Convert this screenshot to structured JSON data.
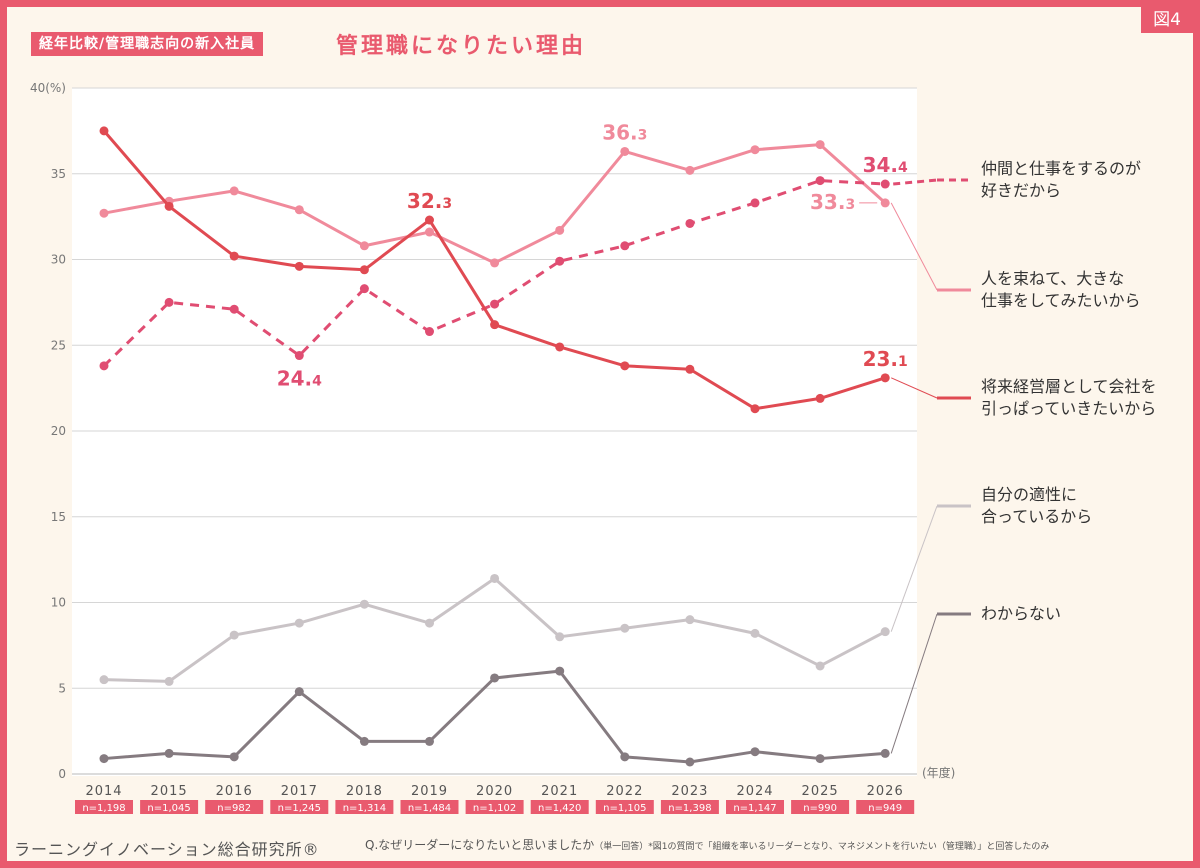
{
  "figure_badge": "図4",
  "header": {
    "tag": "経年比較/管理職志向の新入社員",
    "title": "管理職になりたい理由"
  },
  "footer": {
    "publisher": "ラーニングイノベーション総合研究所®",
    "question": "Q.なぜリーダーになりたいと思いましたか",
    "question_note": "（単一回答）",
    "footnote": "*図1の質問で「組織を率いるリーダーとなり、マネジメントを行いたい（管理職）」と回答したのみ"
  },
  "colors": {
    "border": "#e95a6e",
    "background": "#fdf6ec"
  },
  "chart_data": {
    "type": "line",
    "x": [
      "2014",
      "2015",
      "2016",
      "2017",
      "2018",
      "2019",
      "2020",
      "2021",
      "2022",
      "2023",
      "2024",
      "2025",
      "2026"
    ],
    "x_unit_label": "(年度)",
    "y_unit_label": "(%)",
    "ylim": [
      0,
      40
    ],
    "yticks": [
      0,
      5,
      10,
      15,
      20,
      25,
      30,
      35,
      40
    ],
    "ytick_labels": [
      "0",
      "5",
      "10",
      "15",
      "20",
      "25",
      "30",
      "35",
      "40"
    ],
    "grid": true,
    "sample_sizes": [
      "n=1,198",
      "n=1,045",
      "n=982",
      "n=1,245",
      "n=1,314",
      "n=1,484",
      "n=1,102",
      "n=1,420",
      "n=1,105",
      "n=1,398",
      "n=1,147",
      "n=990",
      "n=949"
    ],
    "series": [
      {
        "name": "仲間と仕事をするのが好きだから",
        "legend_lines": [
          "仲間と仕事をするのが",
          "好きだから"
        ],
        "color": "#e04d72",
        "style": "dashed",
        "values": [
          23.8,
          27.5,
          27.1,
          24.4,
          28.3,
          25.8,
          27.4,
          29.9,
          30.8,
          32.1,
          33.3,
          34.6,
          34.4
        ]
      },
      {
        "name": "人を束ねて、大きな仕事をしてみたいから",
        "legend_lines": [
          "人を束ねて、大きな",
          "仕事をしてみたいから"
        ],
        "color": "#f08a9b",
        "style": "solid",
        "values": [
          32.7,
          33.4,
          34.0,
          32.9,
          30.8,
          31.6,
          29.8,
          31.7,
          36.3,
          35.2,
          36.4,
          36.7,
          33.3
        ]
      },
      {
        "name": "将来経営層として会社を引っぱっていきたいから",
        "legend_lines": [
          "将来経営層として会社を",
          "引っぱっていきたいから"
        ],
        "color": "#e04a52",
        "style": "solid",
        "values": [
          37.5,
          33.1,
          30.2,
          29.6,
          29.4,
          32.3,
          26.2,
          24.9,
          23.8,
          23.6,
          21.3,
          21.9,
          23.1
        ]
      },
      {
        "name": "自分の適性に合っているから",
        "legend_lines": [
          "自分の適性に",
          "合っているから"
        ],
        "color": "#c9c3c6",
        "style": "solid",
        "values": [
          5.5,
          5.4,
          8.1,
          8.8,
          9.9,
          8.8,
          11.4,
          8.0,
          8.5,
          9.0,
          8.2,
          6.3,
          8.3
        ]
      },
      {
        "name": "わからない",
        "legend_lines": [
          "わからない"
        ],
        "color": "#857b80",
        "style": "solid",
        "values": [
          0.9,
          1.2,
          1.0,
          4.8,
          1.9,
          1.9,
          5.6,
          6.0,
          1.0,
          0.7,
          1.3,
          0.9,
          1.2
        ]
      }
    ],
    "annotations": [
      {
        "series": 0,
        "index": 3,
        "text": "24.4"
      },
      {
        "series": 0,
        "index": 12,
        "text": "34.4"
      },
      {
        "series": 1,
        "index": 8,
        "text": "36.3"
      },
      {
        "series": 1,
        "index": 12,
        "text": "33.3"
      },
      {
        "series": 2,
        "index": 5,
        "text": "32.3"
      },
      {
        "series": 2,
        "index": 12,
        "text": "23.1"
      }
    ]
  }
}
